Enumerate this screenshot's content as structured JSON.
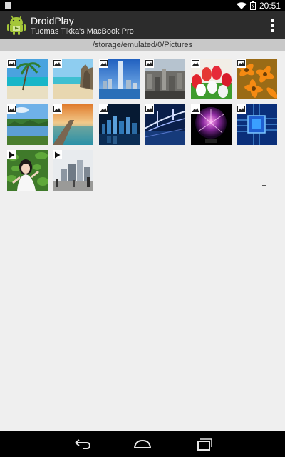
{
  "status_bar": {
    "time": "20:51"
  },
  "app": {
    "title": "DroidPlay",
    "subtitle": "Tuomas Tikka's MacBook Pro",
    "overflow_menu": "overflow-menu-icon"
  },
  "path": "/storage/emulated/0/Pictures",
  "colors": {
    "action_bar": "#2c2c2c",
    "path_bar": "#c8c8c8",
    "background": "#efefef",
    "android_green": "#a4c639"
  },
  "items": [
    {
      "type": "image",
      "subject": "tropical beach with palm tree"
    },
    {
      "type": "image",
      "subject": "beach with rocks"
    },
    {
      "type": "image",
      "subject": "skyscraper over water"
    },
    {
      "type": "image",
      "subject": "city aerial view"
    },
    {
      "type": "image",
      "subject": "red and white tulips"
    },
    {
      "type": "image",
      "subject": "orange flowers"
    },
    {
      "type": "image",
      "subject": "lake landscape"
    },
    {
      "type": "image",
      "subject": "pier at sunset"
    },
    {
      "type": "image",
      "subject": "city skyline at night"
    },
    {
      "type": "image",
      "subject": "bridge at night"
    },
    {
      "type": "image",
      "subject": "plasma ball"
    },
    {
      "type": "image",
      "subject": "circuit board chip"
    },
    {
      "type": "video",
      "subject": "woman in leaves"
    },
    {
      "type": "video",
      "subject": "city street"
    }
  ]
}
